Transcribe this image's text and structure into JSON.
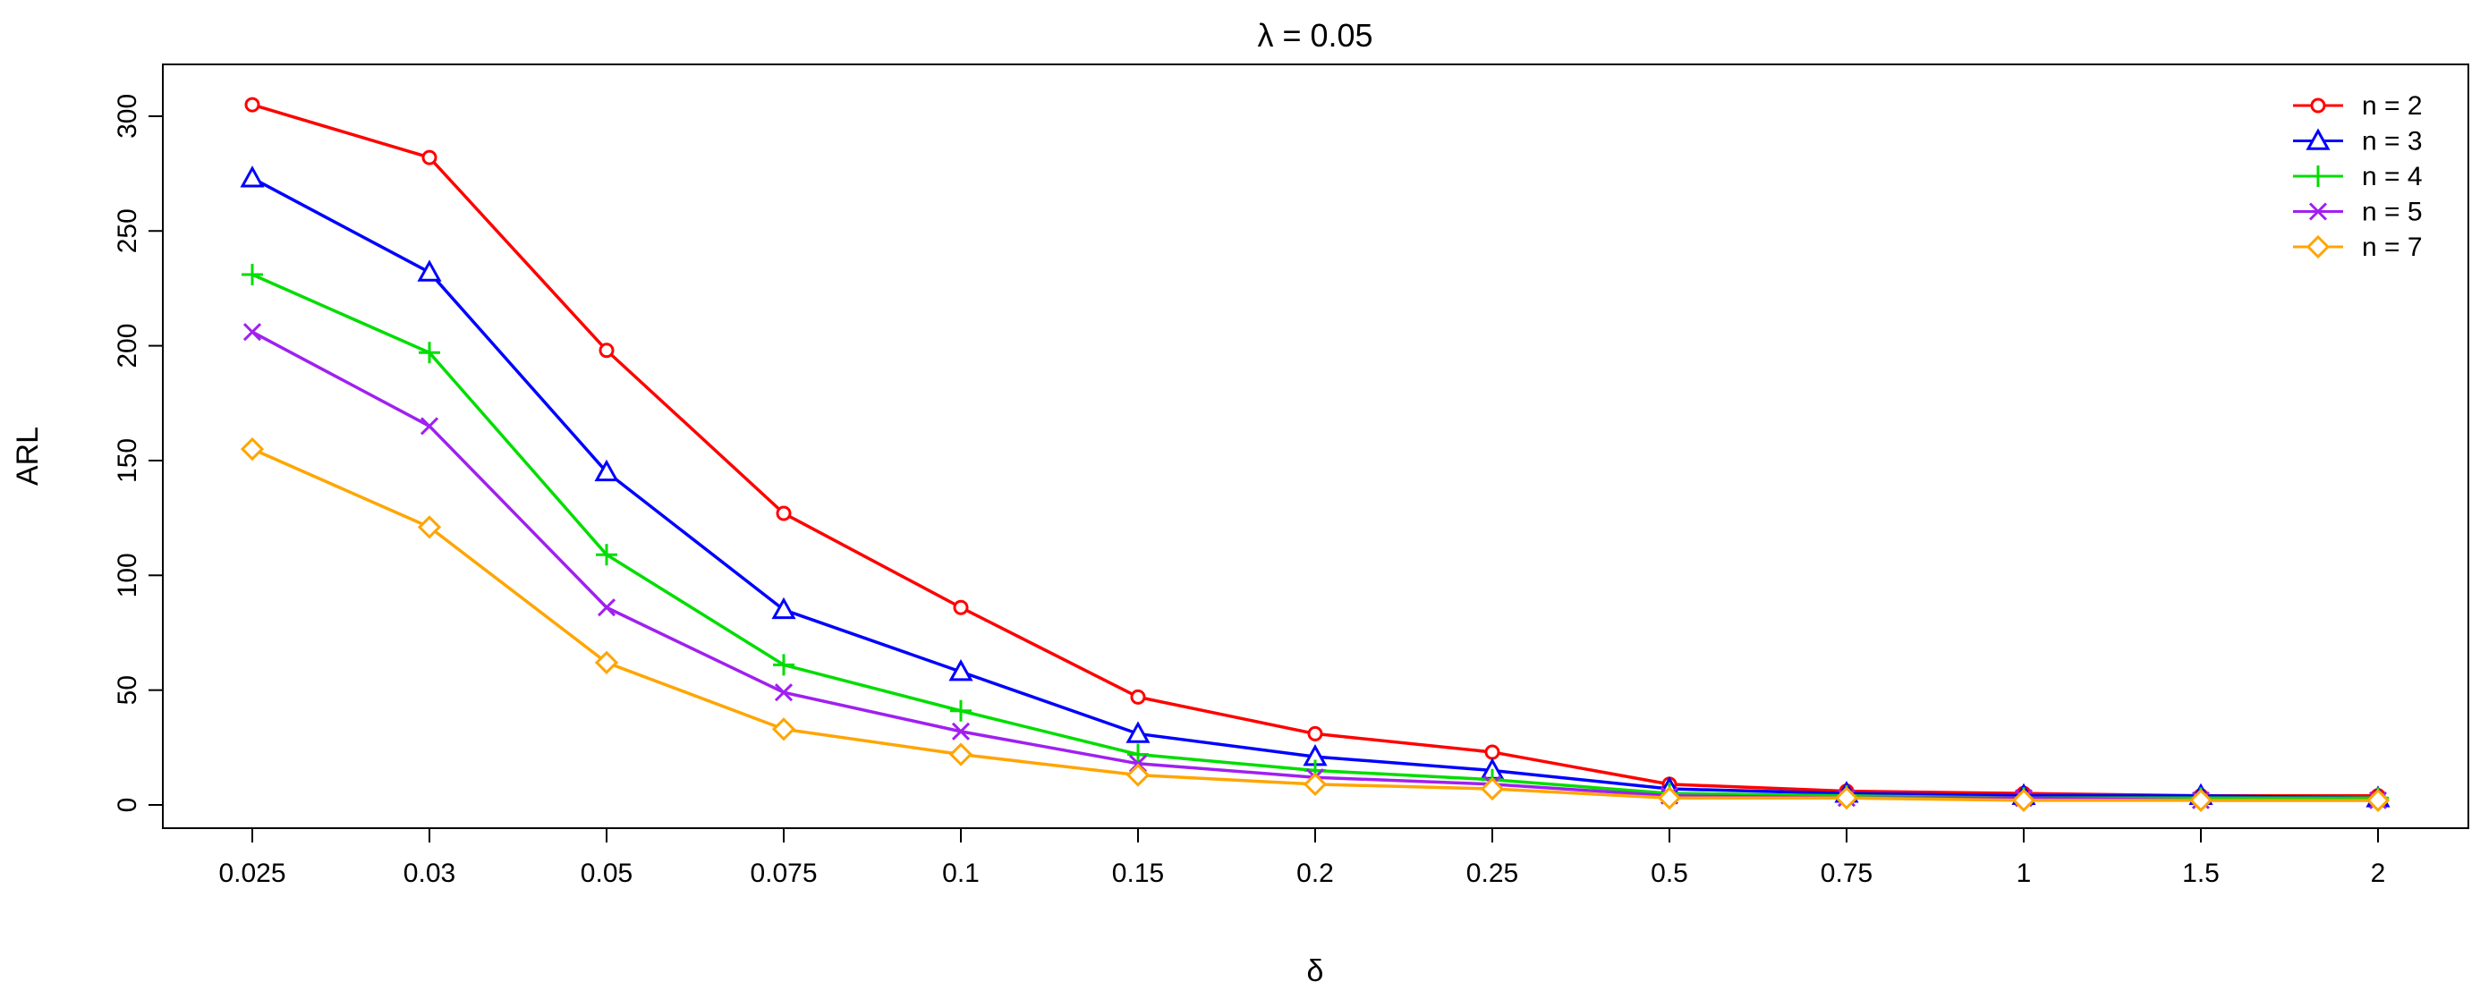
{
  "chart_data": {
    "type": "line",
    "title": "λ = 0.05",
    "xlabel": "δ",
    "ylabel": "ARL",
    "categories": [
      "0.025",
      "0.03",
      "0.05",
      "0.075",
      "0.1",
      "0.15",
      "0.2",
      "0.25",
      "0.5",
      "0.75",
      "1",
      "1.5",
      "2"
    ],
    "yticks": [
      0,
      50,
      100,
      150,
      200,
      250,
      300
    ],
    "ylim": [
      0,
      315
    ],
    "grid": false,
    "legend_position": "top-right",
    "series": [
      {
        "name": "n = 2",
        "color": "#ff0000",
        "marker": "circle",
        "values": [
          305,
          282,
          198,
          127,
          86,
          47,
          31,
          23,
          9,
          6,
          5,
          4,
          4
        ]
      },
      {
        "name": "n = 3",
        "color": "#0000ff",
        "marker": "triangle",
        "values": [
          273,
          232,
          145,
          85,
          58,
          31,
          21,
          15,
          7,
          5,
          4,
          4,
          3
        ]
      },
      {
        "name": "n = 4",
        "color": "#00dd00",
        "marker": "plus",
        "values": [
          231,
          197,
          109,
          61,
          41,
          22,
          15,
          11,
          5,
          4,
          3,
          3,
          3
        ]
      },
      {
        "name": "n = 5",
        "color": "#a020f0",
        "marker": "cross",
        "values": [
          206,
          165,
          86,
          49,
          32,
          18,
          12,
          9,
          4,
          3,
          3,
          2,
          2
        ]
      },
      {
        "name": "n = 7",
        "color": "#ffa500",
        "marker": "diamond",
        "values": [
          155,
          121,
          62,
          33,
          22,
          13,
          9,
          7,
          3,
          3,
          2,
          2,
          2
        ]
      }
    ]
  }
}
